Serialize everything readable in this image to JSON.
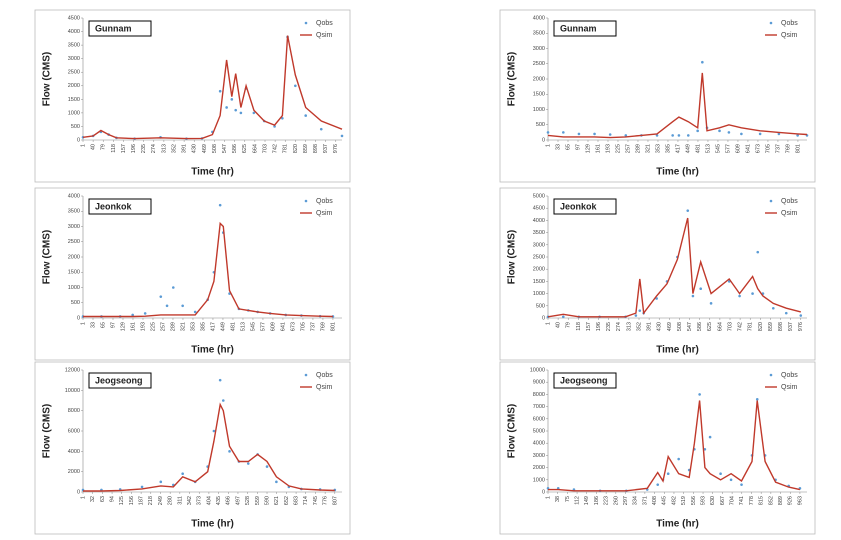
{
  "chart_data": [
    {
      "type": "line",
      "title": "Gunnam",
      "x_label": "Time (hr)",
      "y_label": "Flow (CMS)",
      "x": [
        1,
        40,
        70,
        100,
        130,
        200,
        300,
        400,
        460,
        500,
        530,
        555,
        575,
        590,
        610,
        630,
        660,
        700,
        740,
        770,
        790,
        820,
        860,
        920,
        1000
      ],
      "series": [
        {
          "name": "Qobs",
          "color": "#5b9bd5",
          "values": [
            100,
            150,
            300,
            200,
            80,
            50,
            100,
            50,
            60,
            300,
            1800,
            1200,
            1500,
            1100,
            1000,
            1900,
            1000,
            700,
            500,
            800,
            3800,
            2000,
            900,
            400,
            150
          ]
        },
        {
          "name": "Qsim",
          "color": "#c0392b",
          "values": [
            100,
            150,
            350,
            200,
            80,
            50,
            80,
            50,
            60,
            200,
            900,
            2950,
            1600,
            2450,
            1200,
            2000,
            1100,
            700,
            550,
            900,
            3850,
            2400,
            1200,
            700,
            400
          ]
        }
      ],
      "xlim": [
        1,
        1000
      ],
      "xticks": [
        1,
        40,
        79,
        118,
        157,
        196,
        235,
        274,
        313,
        352,
        391,
        430,
        469,
        508,
        547,
        586,
        625,
        664,
        703,
        742,
        781,
        820,
        859,
        898,
        937,
        976
      ],
      "ylim": [
        0,
        4500
      ],
      "yticks": [
        0,
        500,
        1000,
        1500,
        2000,
        2500,
        3000,
        3500,
        4000,
        4500
      ]
    },
    {
      "type": "line",
      "title": "Gunnam",
      "x_label": "Time (hr)",
      "y_label": "Flow (CMS)",
      "x": [
        1,
        50,
        100,
        150,
        200,
        250,
        300,
        350,
        400,
        420,
        450,
        480,
        495,
        510,
        550,
        580,
        620,
        680,
        740,
        800,
        830
      ],
      "series": [
        {
          "name": "Qobs",
          "color": "#5b9bd5",
          "values": [
            250,
            250,
            200,
            200,
            180,
            150,
            150,
            150,
            150,
            150,
            150,
            300,
            2550,
            400,
            300,
            250,
            200,
            200,
            200,
            150,
            150
          ]
        },
        {
          "name": "Qsim",
          "color": "#c0392b",
          "values": [
            150,
            100,
            100,
            100,
            80,
            100,
            150,
            200,
            600,
            750,
            600,
            400,
            2200,
            300,
            400,
            500,
            400,
            300,
            250,
            200,
            180
          ]
        }
      ],
      "xlim": [
        1,
        830
      ],
      "xticks": [
        1,
        33,
        65,
        97,
        129,
        161,
        193,
        225,
        257,
        289,
        321,
        353,
        385,
        417,
        449,
        481,
        513,
        545,
        577,
        609,
        641,
        673,
        705,
        737,
        769,
        801
      ],
      "ylim": [
        0,
        4000
      ],
      "yticks": [
        0,
        500,
        1000,
        1500,
        2000,
        2500,
        3000,
        3500,
        4000
      ]
    },
    {
      "type": "line",
      "title": "Jeonkok",
      "x_label": "Time (hr)",
      "y_label": "Flow (CMS)",
      "x": [
        1,
        60,
        120,
        160,
        200,
        250,
        270,
        290,
        320,
        360,
        400,
        420,
        440,
        450,
        470,
        500,
        530,
        560,
        600,
        650,
        700,
        760,
        801
      ],
      "series": [
        {
          "name": "Qobs",
          "color": "#5b9bd5",
          "values": [
            50,
            50,
            50,
            100,
            150,
            700,
            400,
            1000,
            400,
            200,
            600,
            1500,
            3700,
            2800,
            800,
            300,
            250,
            200,
            150,
            100,
            80,
            60,
            50
          ]
        },
        {
          "name": "Qsim",
          "color": "#c0392b",
          "values": [
            50,
            50,
            50,
            50,
            60,
            100,
            100,
            100,
            100,
            100,
            600,
            1200,
            3100,
            3000,
            900,
            300,
            250,
            200,
            150,
            100,
            80,
            60,
            50
          ]
        }
      ],
      "xlim": [
        1,
        830
      ],
      "xticks": [
        1,
        33,
        65,
        97,
        129,
        161,
        193,
        225,
        257,
        289,
        321,
        353,
        385,
        417,
        449,
        481,
        513,
        545,
        577,
        609,
        641,
        673,
        705,
        737,
        769,
        801
      ],
      "ylim": [
        0,
        4000
      ],
      "yticks": [
        0,
        500,
        1000,
        1500,
        2000,
        2500,
        3000,
        3500,
        4000
      ]
    },
    {
      "type": "line",
      "title": "Jeonkok",
      "x_label": "Time (hr)",
      "y_label": "Flow (CMS)",
      "x": [
        1,
        60,
        120,
        200,
        300,
        340,
        355,
        370,
        420,
        460,
        500,
        540,
        560,
        590,
        630,
        700,
        740,
        790,
        810,
        830,
        870,
        920,
        976
      ],
      "series": [
        {
          "name": "Qobs",
          "color": "#5b9bd5",
          "values": [
            50,
            50,
            50,
            50,
            50,
            100,
            300,
            200,
            800,
            1500,
            2500,
            4400,
            900,
            1200,
            600,
            1500,
            900,
            1000,
            2700,
            1000,
            400,
            200,
            100
          ]
        },
        {
          "name": "Qsim",
          "color": "#c0392b",
          "values": [
            50,
            150,
            50,
            50,
            50,
            200,
            1600,
            200,
            900,
            1400,
            2400,
            4100,
            1000,
            2300,
            1000,
            1600,
            1000,
            1700,
            1200,
            900,
            600,
            400,
            250
          ]
        }
      ],
      "xlim": [
        1,
        1000
      ],
      "xticks": [
        1,
        40,
        79,
        118,
        157,
        196,
        235,
        274,
        313,
        352,
        391,
        430,
        469,
        508,
        547,
        586,
        625,
        664,
        703,
        742,
        781,
        820,
        859,
        898,
        937,
        976
      ],
      "ylim": [
        0,
        5000
      ],
      "yticks": [
        0,
        500,
        1000,
        1500,
        2000,
        2500,
        3000,
        3500,
        4000,
        4500,
        5000
      ]
    },
    {
      "type": "line",
      "title": "Jeogseong",
      "x_label": "Time (hr)",
      "y_label": "Flow (CMS)",
      "x": [
        1,
        60,
        120,
        190,
        250,
        290,
        320,
        360,
        400,
        420,
        440,
        450,
        470,
        500,
        530,
        560,
        590,
        620,
        660,
        700,
        760,
        807
      ],
      "series": [
        {
          "name": "Qobs",
          "color": "#5b9bd5",
          "values": [
            200,
            200,
            250,
            500,
            1000,
            700,
            1800,
            1000,
            2500,
            6000,
            11000,
            9000,
            4000,
            3000,
            2800,
            3700,
            2500,
            1000,
            500,
            300,
            250,
            200
          ]
        },
        {
          "name": "Qsim",
          "color": "#c0392b",
          "values": [
            100,
            100,
            150,
            300,
            600,
            500,
            1500,
            1000,
            2000,
            5000,
            8600,
            8000,
            4500,
            3000,
            3000,
            3700,
            3000,
            1500,
            600,
            300,
            200,
            150
          ]
        }
      ],
      "xlim": [
        1,
        830
      ],
      "xticks": [
        1,
        32,
        63,
        94,
        125,
        156,
        187,
        218,
        249,
        280,
        311,
        342,
        373,
        404,
        435,
        466,
        497,
        528,
        559,
        590,
        621,
        652,
        683,
        714,
        745,
        776,
        807
      ],
      "ylim": [
        0,
        12000
      ],
      "yticks": [
        0,
        2000,
        4000,
        6000,
        8000,
        10000,
        12000
      ]
    },
    {
      "type": "line",
      "title": "Jeogseong",
      "x_label": "Time (hr)",
      "y_label": "Flow (CMS)",
      "x": [
        1,
        40,
        100,
        200,
        300,
        380,
        420,
        440,
        460,
        500,
        540,
        560,
        580,
        600,
        620,
        660,
        700,
        740,
        780,
        800,
        830,
        870,
        920,
        963
      ],
      "series": [
        {
          "name": "Qobs",
          "color": "#5b9bd5",
          "values": [
            300,
            300,
            200,
            100,
            100,
            200,
            600,
            1000,
            1500,
            2700,
            1800,
            3500,
            8000,
            3500,
            4500,
            1500,
            1000,
            600,
            3000,
            7600,
            3000,
            1000,
            500,
            300
          ]
        },
        {
          "name": "Qsim",
          "color": "#c0392b",
          "values": [
            200,
            200,
            100,
            100,
            100,
            300,
            1600,
            900,
            2900,
            1500,
            1200,
            4000,
            7500,
            2000,
            1500,
            1000,
            1500,
            900,
            2500,
            7500,
            2500,
            800,
            400,
            200
          ]
        }
      ],
      "xlim": [
        1,
        990
      ],
      "xticks": [
        1,
        38,
        75,
        112,
        149,
        186,
        223,
        260,
        297,
        334,
        371,
        408,
        445,
        482,
        519,
        556,
        593,
        630,
        667,
        704,
        741,
        778,
        815,
        852,
        889,
        926,
        963
      ],
      "ylim": [
        0,
        10000
      ],
      "yticks": [
        0,
        1000,
        2000,
        3000,
        4000,
        5000,
        6000,
        7000,
        8000,
        9000,
        10000
      ]
    }
  ]
}
